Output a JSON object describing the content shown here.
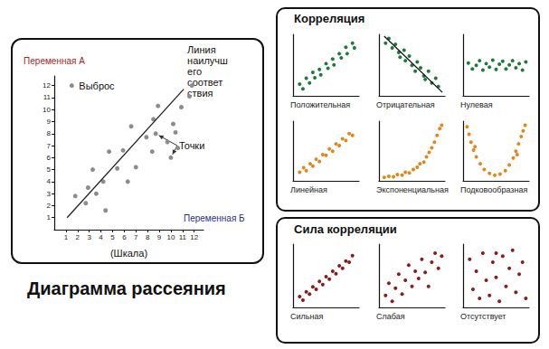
{
  "title": "Диаграмма рассеяния",
  "chart_data": {
    "type": "scatter",
    "ylabel": "Переменная А",
    "x_variable": "Переменная Б",
    "xlabel": "(Шкала)",
    "xlim": [
      0,
      12.8
    ],
    "ylim": [
      0,
      12.8
    ],
    "xticks": [
      1,
      2,
      3,
      4,
      5,
      6,
      7,
      8,
      9,
      10,
      11,
      12
    ],
    "yticks": [
      1,
      2,
      3,
      4,
      5,
      6,
      7,
      8,
      9,
      10,
      11,
      12
    ],
    "grid": false,
    "series": [
      {
        "type": "scatter",
        "color": "#8c8c8c",
        "x": [
          1.8,
          2.9,
          2.7,
          3.3,
          3.6,
          4.2,
          4.4,
          4.7,
          5.4,
          5.9,
          6.3,
          6.6,
          7.0,
          7.9,
          8.4,
          8.5,
          8.9,
          9.7,
          10.2,
          10.4,
          10.6,
          10.9,
          11.6,
          11.8
        ],
        "values": [
          2.8,
          3.5,
          2.2,
          5.0,
          3.0,
          4.0,
          1.6,
          6.5,
          5.1,
          6.6,
          4.0,
          8.6,
          5.2,
          7.7,
          6.5,
          9.2,
          10.3,
          7.3,
          8.8,
          8.1,
          6.8,
          10.2,
          11.1,
          12.0
        ]
      },
      {
        "type": "line",
        "name": "Линия наилучшего соответствия",
        "color": "#222222",
        "x": [
          1.1,
          11.1
        ],
        "values": [
          1.0,
          11.7
        ]
      }
    ],
    "annotations": [
      {
        "text": "Выброс",
        "x": [
          1.5
        ],
        "y": [
          12
        ]
      },
      {
        "text": "Точки",
        "x": [
          8.7,
          10.0
        ],
        "y": [
          8.0,
          6.0
        ]
      }
    ]
  },
  "panels": [
    {
      "title": "Корреляция",
      "chart_data": [
        {
          "type": "scatter",
          "title": "Положительная",
          "color": "#1f7a3a",
          "tick_labels": false,
          "xlim": [
            0,
            10
          ],
          "ylim": [
            0,
            10.5
          ],
          "x": [
            1,
            1.5,
            2,
            2.5,
            3,
            3.3,
            4,
            4.2,
            5,
            5.3,
            6,
            6.2,
            7,
            7.3,
            8,
            8.2,
            9,
            9.3
          ],
          "values": [
            2,
            1.2,
            3,
            2.2,
            4,
            3.1,
            4.5,
            3.6,
            5.5,
            4.7,
            6.3,
            5.3,
            7.2,
            6.5,
            8.3,
            7.2,
            9,
            8.2
          ]
        },
        {
          "type": "scatter",
          "title": "Отрицательная",
          "tick_labels": false,
          "xlim": [
            0,
            10
          ],
          "ylim": [
            0,
            10.5
          ],
          "series": [
            {
              "type": "scatter",
              "color": "#1f7a3a",
              "x": [
                1,
                1.5,
                2,
                2.5,
                3,
                3.2,
                3.8,
                4,
                4.6,
                5,
                5.5,
                5.8,
                6.3,
                6.8,
                7,
                7.5,
                8,
                8.6,
                9
              ],
              "values": [
                9,
                9.8,
                8.2,
                8.8,
                7.4,
                6.6,
                7.8,
                6,
                6.8,
                5.2,
                4.2,
                5.8,
                4.8,
                3.4,
                2.8,
                4.2,
                2.2,
                3,
                1.6
              ]
            },
            {
              "type": "line",
              "color": "#111111",
              "x": [
                0.8,
                9.6
              ],
              "values": [
                10.2,
                0.6
              ]
            }
          ]
        },
        {
          "type": "scatter",
          "title": "Нулевая",
          "color": "#1f7a3a",
          "tick_labels": false,
          "xlim": [
            0,
            10
          ],
          "ylim": [
            0,
            10.5
          ],
          "x": [
            0.8,
            1.4,
            2,
            2.5,
            3,
            3.5,
            4,
            4.5,
            5,
            5.5,
            6,
            6.5,
            7,
            7.5,
            8,
            8.5,
            9,
            9.5
          ],
          "values": [
            5.6,
            4.6,
            5.2,
            6,
            4.4,
            5.5,
            4.9,
            6.1,
            4.5,
            5.4,
            5.9,
            4.6,
            5.3,
            6,
            4.8,
            5.5,
            4.4,
            5.8
          ]
        },
        {
          "type": "scatter",
          "title": "Линейная",
          "color": "#e0861a",
          "tick_labels": false,
          "xlim": [
            0,
            10
          ],
          "ylim": [
            0,
            10.5
          ],
          "x": [
            1,
            1.6,
            2,
            2.6,
            3,
            3.5,
            4,
            4.5,
            5,
            5.5,
            6,
            6.5,
            7,
            7.5,
            8,
            8.5,
            9
          ],
          "values": [
            1.5,
            2.3,
            1.8,
            3,
            2.6,
            3.8,
            3.4,
            4.6,
            4.5,
            5.6,
            5.2,
            6.5,
            6.2,
            7.4,
            7.1,
            8.3,
            8
          ]
        },
        {
          "type": "scatter",
          "title": "Экспоненциальная",
          "color": "#e0861a",
          "tick_labels": false,
          "xlim": [
            0,
            10
          ],
          "ylim": [
            0,
            10.5
          ],
          "x": [
            0.8,
            1.5,
            2.2,
            2.8,
            3.5,
            4,
            4.6,
            5.2,
            5.8,
            6.2,
            6.8,
            7.2,
            7.6,
            8,
            8.4,
            8.8,
            9.2,
            9.5
          ],
          "values": [
            0.6,
            0.8,
            0.7,
            1.1,
            1,
            1.5,
            1.4,
            2,
            2.4,
            3,
            3.3,
            4.2,
            5,
            5.8,
            6.8,
            8,
            9.2,
            9.8
          ]
        },
        {
          "type": "scatter",
          "title": "Подковообразная",
          "color": "#e0861a",
          "tick_labels": false,
          "xlim": [
            0,
            10
          ],
          "ylim": [
            0,
            10.5
          ],
          "x": [
            0.6,
            0.9,
            1.2,
            1.6,
            1.8,
            2,
            2.6,
            3.2,
            4,
            4.8,
            5.6,
            6.4,
            7,
            7.6,
            8,
            8.2,
            8.4,
            8.8,
            9.1,
            9.4
          ],
          "values": [
            9.5,
            8.2,
            6.8,
            5.4,
            6,
            4.2,
            3,
            2,
            1.3,
            1,
            1.2,
            1.8,
            2.8,
            4,
            5.2,
            4.6,
            6.5,
            7.8,
            8.8,
            9.8
          ]
        }
      ]
    },
    {
      "title": "Сила корреляции",
      "chart_data": [
        {
          "type": "scatter",
          "title": "Сильная",
          "color": "#8b1c1c",
          "tick_labels": false,
          "xlim": [
            0,
            10
          ],
          "ylim": [
            0,
            10.5
          ],
          "x": [
            1,
            1.5,
            2,
            2.5,
            3,
            3.5,
            4,
            4.5,
            5,
            5.5,
            6,
            6.5,
            7,
            7.5,
            8,
            8.5,
            9
          ],
          "values": [
            1.8,
            1.2,
            2.6,
            2.2,
            3.4,
            3,
            4.3,
            3.8,
            5.1,
            4.7,
            6,
            5.6,
            6.9,
            6.5,
            7.7,
            7.5,
            8.6
          ]
        },
        {
          "type": "scatter",
          "title": "Слабая",
          "color": "#8b1c1c",
          "tick_labels": false,
          "xlim": [
            0,
            10
          ],
          "ylim": [
            0,
            10.5
          ],
          "x": [
            1,
            1.5,
            2,
            2.5,
            3,
            3.5,
            4,
            4.5,
            5,
            5.5,
            6,
            6.5,
            7,
            7.5,
            8,
            8.5,
            9,
            9.5
          ],
          "values": [
            2,
            4,
            1,
            3.2,
            5.5,
            2.2,
            4.5,
            7,
            3.5,
            6,
            4.8,
            8,
            5.8,
            3.5,
            7.5,
            9,
            6.5,
            8.5
          ]
        },
        {
          "type": "scatter",
          "title": "Отсутствует",
          "color": "#8b1c1c",
          "tick_labels": false,
          "xlim": [
            0,
            10
          ],
          "ylim": [
            0,
            10.5
          ],
          "x": [
            1,
            1.5,
            2,
            2.5,
            3,
            3.5,
            4,
            4.5,
            5,
            5,
            5.5,
            6,
            6.5,
            7,
            7.5,
            8,
            8.5,
            9,
            9.5
          ],
          "values": [
            8,
            3,
            6,
            1.5,
            9,
            4.5,
            2,
            7.5,
            5,
            9,
            1,
            8.5,
            3.5,
            6.5,
            9.5,
            2.5,
            5.5,
            7.5,
            1.5
          ]
        }
      ]
    }
  ]
}
